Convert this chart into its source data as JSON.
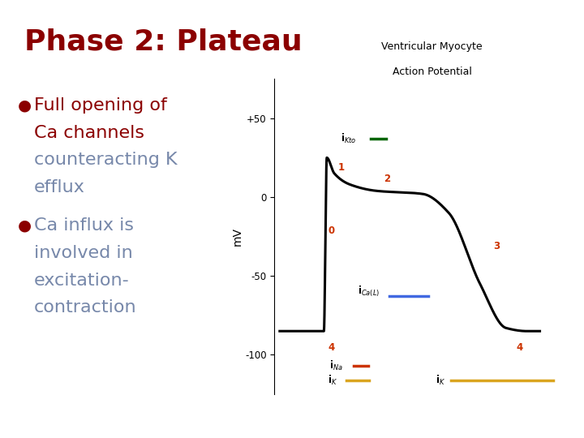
{
  "title": "Phase 2: Plateau",
  "title_color": "#8B0000",
  "title_fontsize": 26,
  "background_color": "#FFFFFF",
  "bullet1_lines": [
    "Full opening of",
    "Ca channels",
    "counteracting K",
    "efflux"
  ],
  "bullet1_colors": [
    "#8B0000",
    "#8B0000",
    "#7788AA",
    "#7788AA"
  ],
  "bullet2_lines": [
    "Ca influx is",
    "involved in",
    "excitation-",
    "contraction"
  ],
  "bullet2_colors": [
    "#7788AA",
    "#7788AA",
    "#7788AA",
    "#7788AA"
  ],
  "bullet_dot_color": "#8B0000",
  "graph_title_line1": "Ventricular Myocyte",
  "graph_title_line2": "Action Potential",
  "graph_title_fontsize": 9,
  "ylabel": "mV",
  "yticks": [
    -100,
    -50,
    0,
    50
  ],
  "ytick_labels": [
    "-100",
    "-50",
    "0",
    "+50"
  ],
  "ylim": [
    -125,
    75
  ],
  "phase_color": "#CC3300",
  "line_ikto_color": "#006400",
  "line_ical_color": "#4169E1",
  "line_ina_color": "#CC3300",
  "line_ik_color": "#DAA520",
  "ap_color": "#000000",
  "ap_linewidth": 2.2,
  "bullet_fontsize": 16,
  "text_fontsize": 8.5
}
